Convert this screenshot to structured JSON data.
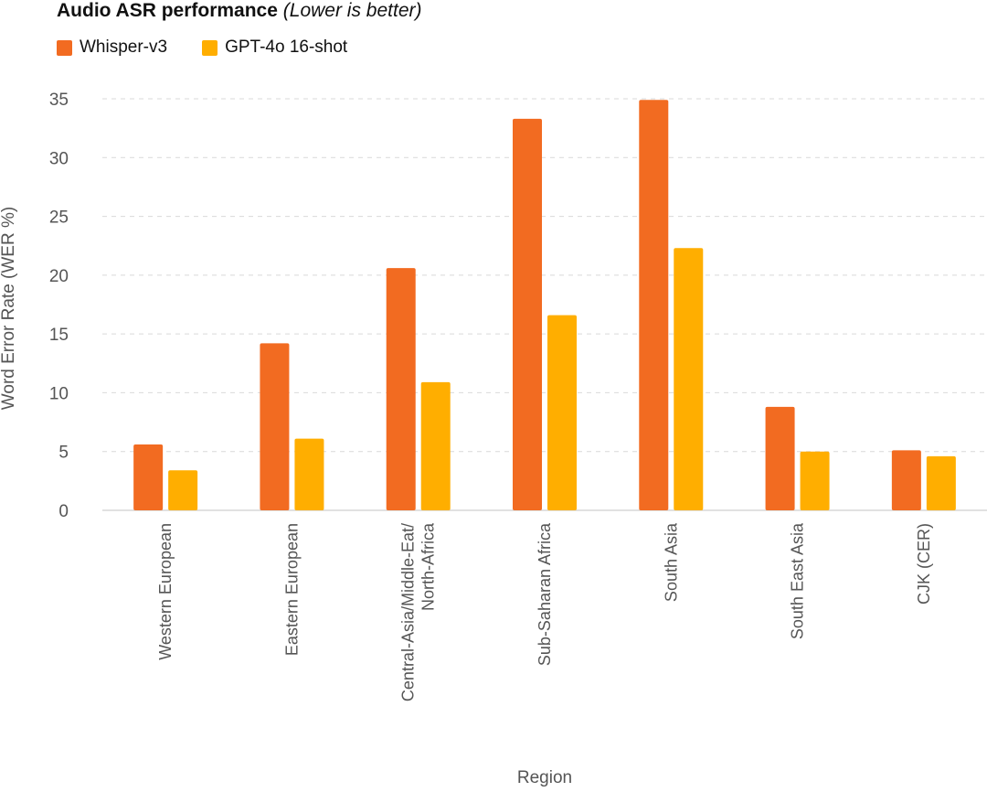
{
  "chart_data": {
    "type": "bar",
    "title": "Audio ASR performance",
    "subtitle": "(Lower is better)",
    "xlabel": "Region",
    "ylabel": "Word Error Rate (WER %)",
    "ylim": [
      0,
      35
    ],
    "yticks": [
      0,
      5,
      10,
      15,
      20,
      25,
      30,
      35
    ],
    "grid": true,
    "legend_position": "top-left",
    "categories": [
      [
        "Western European"
      ],
      [
        "Eastern European"
      ],
      [
        "Central-Asia/Middle-Eat/",
        "North-Africa"
      ],
      [
        "Sub-Saharan Africa"
      ],
      [
        "South Asia"
      ],
      [
        "South East Asia"
      ],
      [
        "CJK (CER)"
      ]
    ],
    "series": [
      {
        "name": "Whisper-v3",
        "color": "#F26B21",
        "values": [
          5.6,
          14.2,
          20.6,
          33.3,
          34.9,
          8.8,
          5.1
        ]
      },
      {
        "name": "GPT-4o 16-shot",
        "color": "#FFAE00",
        "values": [
          3.4,
          6.1,
          10.9,
          16.6,
          22.3,
          5.0,
          4.6
        ]
      }
    ]
  }
}
